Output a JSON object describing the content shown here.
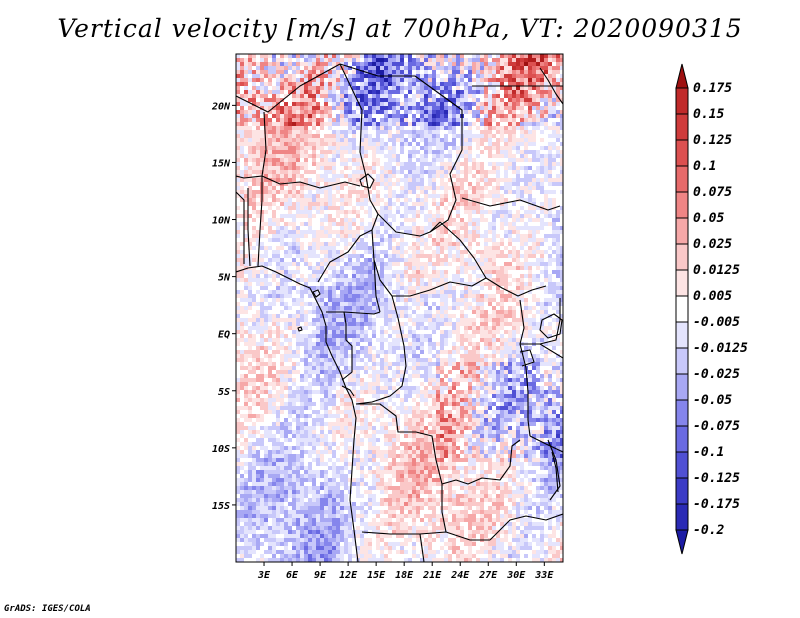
{
  "title": "Vertical velocity [m/s] at 700hPa, VT: 2020090315",
  "credit": "GrADS: IGES/COLA",
  "map": {
    "lon_range": [
      0,
      35
    ],
    "lat_range": [
      -20,
      24.5
    ],
    "lon_ticks": [
      {
        "value": 3,
        "label": "3E"
      },
      {
        "value": 6,
        "label": "6E"
      },
      {
        "value": 9,
        "label": "9E"
      },
      {
        "value": 12,
        "label": "12E"
      },
      {
        "value": 15,
        "label": "15E"
      },
      {
        "value": 18,
        "label": "18E"
      },
      {
        "value": 21,
        "label": "21E"
      },
      {
        "value": 24,
        "label": "24E"
      },
      {
        "value": 27,
        "label": "27E"
      },
      {
        "value": 30,
        "label": "30E"
      },
      {
        "value": 33,
        "label": "33E"
      }
    ],
    "lat_ticks": [
      {
        "value": 20,
        "label": "20N"
      },
      {
        "value": 15,
        "label": "15N"
      },
      {
        "value": 10,
        "label": "10N"
      },
      {
        "value": 5,
        "label": "5N"
      },
      {
        "value": 0,
        "label": "EQ"
      },
      {
        "value": -5,
        "label": "5S"
      },
      {
        "value": -10,
        "label": "10S"
      },
      {
        "value": -15,
        "label": "15S"
      }
    ]
  },
  "colorbar": {
    "levels": [
      {
        "label": "0.175",
        "color": "#b01c1c"
      },
      {
        "label": "0.15",
        "color": "#c02a2a"
      },
      {
        "label": "0.125",
        "color": "#cf3b3b"
      },
      {
        "label": "0.1",
        "color": "#dc5050"
      },
      {
        "label": "0.075",
        "color": "#e76a6a"
      },
      {
        "label": "0.05",
        "color": "#ef8585"
      },
      {
        "label": "0.025",
        "color": "#f6a8a8"
      },
      {
        "label": "0.0125",
        "color": "#fac8c8"
      },
      {
        "label": "0.005",
        "color": "#fde4e4"
      },
      {
        "label": "-0.005",
        "color": "#ffffff"
      },
      {
        "label": "-0.0125",
        "color": "#e4e4fd"
      },
      {
        "label": "-0.025",
        "color": "#c8c8fa"
      },
      {
        "label": "-0.05",
        "color": "#a8a8f4"
      },
      {
        "label": "-0.075",
        "color": "#8585ec"
      },
      {
        "label": "-0.1",
        "color": "#6a6ae2"
      },
      {
        "label": "-0.125",
        "color": "#5050d4"
      },
      {
        "label": "-0.175",
        "color": "#3b3bc6"
      },
      {
        "label": "-0.2",
        "color": "#2a2ab5"
      }
    ],
    "top_color": "#9e1010",
    "bottom_color": "#1c1ca4"
  }
}
